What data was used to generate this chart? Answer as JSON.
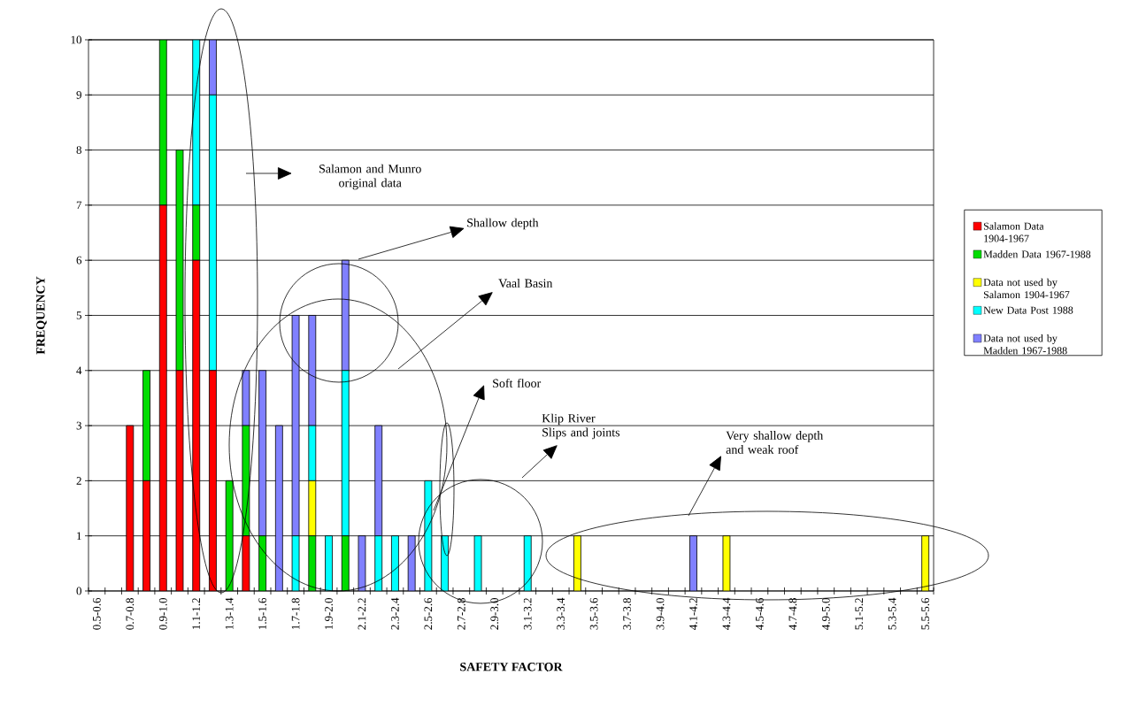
{
  "chart_data": {
    "type": "bar",
    "stacked": true,
    "xlabel": "SAFETY FACTOR",
    "ylabel": "FREQUENCY",
    "categories": [
      "0.5-0.6",
      null,
      "0.7-0.8",
      null,
      "0.9-1.0",
      null,
      "1.1-1.2",
      null,
      "1.3-1.4",
      null,
      "1.5-1.6",
      null,
      "1.7-1.8",
      null,
      "1.9-2.0",
      null,
      "2.1-2.2",
      null,
      "2.3-2.4",
      null,
      "2.5-2.6",
      null,
      "2.7-2.8",
      null,
      "2.9-3.0",
      null,
      "3.1-3.2",
      null,
      "3.3-3.4",
      null,
      "3.5-3.6",
      null,
      "3.7-3.8",
      null,
      "3.9-4.0",
      null,
      "4.1-4.2",
      null,
      "4.3-4.4",
      null,
      "4.5-4.6",
      null,
      "4.7-4.8",
      null,
      "4.9-5.0",
      null,
      "5.1-5.2",
      null,
      "5.3-5.4",
      null,
      "5.5-5.6"
    ],
    "series": [
      {
        "name": "Salamon Data 1904-1967",
        "color": "#ff0000",
        "values": [
          0,
          0,
          3,
          2,
          7,
          4,
          6,
          4,
          0,
          1,
          0,
          0,
          0,
          0,
          0,
          0,
          0,
          0,
          0,
          0,
          0,
          0,
          0,
          0,
          0,
          0,
          0,
          0,
          0,
          0,
          0,
          0,
          0,
          0,
          0,
          0,
          0,
          0,
          0,
          0,
          0,
          0,
          0,
          0,
          0,
          0,
          0,
          0,
          0,
          0,
          0
        ]
      },
      {
        "name": "Madden Data 1967-1988",
        "color": "#00dd00",
        "values": [
          0,
          0,
          0,
          2,
          3,
          4,
          1,
          0,
          2,
          2,
          1,
          0,
          0,
          1,
          0,
          1,
          0,
          0,
          0,
          0,
          0,
          0,
          0,
          0,
          0,
          0,
          0,
          0,
          0,
          0,
          0,
          0,
          0,
          0,
          0,
          0,
          0,
          0,
          0,
          0,
          0,
          0,
          0,
          0,
          0,
          0,
          0,
          0,
          0,
          0,
          0
        ]
      },
      {
        "name": "Data not used by Salamon 1904-1967",
        "color": "#ffff00",
        "values": [
          0,
          0,
          0,
          0,
          0,
          0,
          0,
          0,
          0,
          0,
          0,
          0,
          0,
          1,
          0,
          0,
          0,
          0,
          0,
          0,
          0,
          0,
          0,
          0,
          0,
          0,
          0,
          0,
          0,
          1,
          0,
          0,
          0,
          0,
          0,
          0,
          0,
          0,
          1,
          0,
          0,
          0,
          0,
          0,
          0,
          0,
          0,
          0,
          0,
          0,
          1
        ]
      },
      {
        "name": "New Data Post 1988",
        "color": "#00ffff",
        "values": [
          0,
          0,
          0,
          0,
          0,
          0,
          3,
          5,
          0,
          0,
          0,
          0,
          1,
          1,
          1,
          3,
          0,
          1,
          1,
          0,
          2,
          1,
          0,
          1,
          0,
          0,
          1,
          0,
          0,
          0,
          0,
          0,
          0,
          0,
          0,
          0,
          0,
          0,
          0,
          0,
          0,
          0,
          0,
          0,
          0,
          0,
          0,
          0,
          0,
          0,
          0
        ]
      },
      {
        "name": "Data not used by Madden 1967-1988",
        "color": "#8080ff",
        "values": [
          0,
          0,
          0,
          0,
          0,
          0,
          0,
          1,
          0,
          1,
          3,
          3,
          4,
          2,
          0,
          2,
          1,
          2,
          0,
          1,
          0,
          0,
          0,
          0,
          0,
          0,
          0,
          0,
          0,
          0,
          0,
          0,
          0,
          0,
          0,
          0,
          1,
          0,
          0,
          0,
          0,
          0,
          0,
          0,
          0,
          0,
          0,
          0,
          0,
          0,
          0
        ]
      }
    ],
    "ylim": [
      0,
      10
    ],
    "yticks": [
      0,
      1,
      2,
      3,
      4,
      5,
      6,
      7,
      8,
      9,
      10
    ],
    "grid": "y",
    "legend": "right",
    "annotations": [
      "Salamon and Munro original data",
      "Shallow depth",
      "Vaal Basin",
      "Soft floor",
      "Klip River Slips and joints",
      "Very shallow depth and weak roof"
    ]
  }
}
